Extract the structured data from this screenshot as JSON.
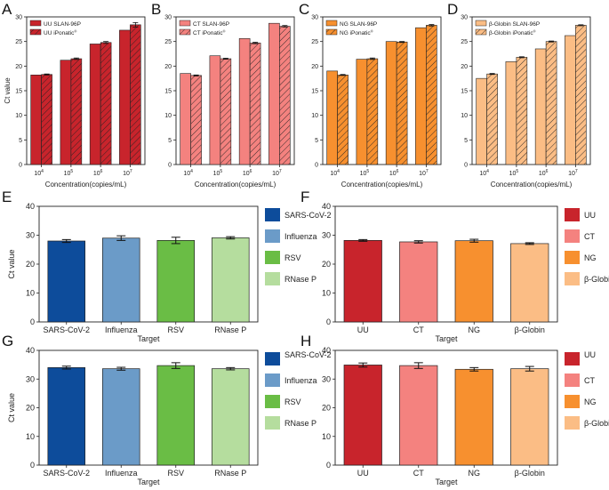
{
  "figure": {
    "hatch_note": "hatched bars = iPonatic"
  },
  "chart_data": [
    {
      "panel": "A",
      "type": "bar",
      "ylabel": "Ct value",
      "xlabel": "Concentration(copies/mL)",
      "ylim": [
        0,
        30
      ],
      "yticks": [
        0,
        5,
        10,
        15,
        20,
        25,
        30
      ],
      "categories": [
        "4",
        "5",
        "6",
        "7"
      ],
      "category_base": "10",
      "series": [
        {
          "name": "UU SLAN-96P",
          "values": [
            18.2,
            21.2,
            24.5,
            27.3
          ],
          "errors": [
            0,
            0,
            0,
            0
          ],
          "color": "#c8242c",
          "hatch": false
        },
        {
          "name": "UU iPonatic",
          "values": [
            18.3,
            21.5,
            24.8,
            28.4
          ],
          "errors": [
            0.1,
            0.15,
            0.2,
            0.45
          ],
          "color": "#c8242c",
          "hatch": true
        }
      ],
      "legend": "top-left"
    },
    {
      "panel": "B",
      "type": "bar",
      "ylabel": "",
      "xlabel": "Concentration(copies/mL)",
      "ylim": [
        0,
        30
      ],
      "yticks": [
        0,
        5,
        10,
        15,
        20,
        25,
        30
      ],
      "categories": [
        "4",
        "5",
        "6",
        "7"
      ],
      "category_base": "10",
      "series": [
        {
          "name": "CT SLAN-96P",
          "values": [
            18.5,
            22.1,
            25.6,
            28.7
          ],
          "errors": [
            0,
            0,
            0,
            0
          ],
          "color": "#f4827f",
          "hatch": false
        },
        {
          "name": "CT iPonatic",
          "values": [
            18.1,
            21.5,
            24.7,
            28.1
          ],
          "errors": [
            0.1,
            0.1,
            0.15,
            0.15
          ],
          "color": "#f4827f",
          "hatch": true
        }
      ],
      "legend": "top-left"
    },
    {
      "panel": "C",
      "type": "bar",
      "ylabel": "",
      "xlabel": "Concentration(copies/mL)",
      "ylim": [
        0,
        30
      ],
      "yticks": [
        0,
        5,
        10,
        15,
        20,
        25,
        30
      ],
      "categories": [
        "4",
        "5",
        "6",
        "7"
      ],
      "category_base": "10",
      "series": [
        {
          "name": "NG SLAN-96P",
          "values": [
            19.0,
            21.4,
            25.0,
            27.8
          ],
          "errors": [
            0,
            0,
            0,
            0
          ],
          "color": "#f7902f",
          "hatch": false
        },
        {
          "name": "NG iPonatic",
          "values": [
            18.2,
            21.5,
            24.9,
            28.3
          ],
          "errors": [
            0.1,
            0.15,
            0.1,
            0.15
          ],
          "color": "#f7902f",
          "hatch": true
        }
      ],
      "legend": "top-left"
    },
    {
      "panel": "D",
      "type": "bar",
      "ylabel": "",
      "xlabel": "Concentration(copies/mL)",
      "ylim": [
        0,
        30
      ],
      "yticks": [
        0,
        5,
        10,
        15,
        20,
        25,
        30
      ],
      "categories": [
        "4",
        "5",
        "6",
        "7"
      ],
      "category_base": "10",
      "series": [
        {
          "name": "β-Globin SLAN-96P",
          "values": [
            17.5,
            20.9,
            23.5,
            26.2
          ],
          "errors": [
            0,
            0,
            0,
            0
          ],
          "color": "#fbbd85",
          "hatch": false
        },
        {
          "name": "β-Globin iPonatic",
          "values": [
            18.4,
            21.8,
            25.0,
            28.3
          ],
          "errors": [
            0.1,
            0.1,
            0.1,
            0.1
          ],
          "color": "#fbbd85",
          "hatch": true
        }
      ],
      "legend": "top-left"
    },
    {
      "panel": "E",
      "type": "bar",
      "ylabel": "Ct value",
      "xlabel": "Target",
      "ylim": [
        0,
        40
      ],
      "yticks": [
        0,
        10,
        20,
        30,
        40
      ],
      "categories": [
        "SARS-CoV-2",
        "Influenza",
        "RSV",
        "RNase P"
      ],
      "values": [
        28.0,
        29.0,
        28.2,
        29.1
      ],
      "errors": [
        0.5,
        0.8,
        1.1,
        0.4
      ],
      "colors": [
        "#0d4c9b",
        "#6b9bc8",
        "#6abd45",
        "#b5dd9e"
      ],
      "legend_entries": [
        "SARS-CoV-2",
        "Influenza",
        "RSV",
        "RNase P"
      ],
      "legend": "outside-right"
    },
    {
      "panel": "F",
      "type": "bar",
      "ylabel": "",
      "xlabel": "Target",
      "ylim": [
        0,
        40
      ],
      "yticks": [
        0,
        10,
        20,
        30,
        40
      ],
      "categories": [
        "UU",
        "CT",
        "NG",
        "β-Globin"
      ],
      "values": [
        28.2,
        27.7,
        28.1,
        27.1
      ],
      "errors": [
        0.3,
        0.4,
        0.5,
        0.3
      ],
      "colors": [
        "#c8242c",
        "#f4827f",
        "#f7902f",
        "#fbbd85"
      ],
      "legend_entries": [
        "UU",
        "CT",
        "NG",
        "β-Globin"
      ],
      "legend": "outside-right"
    },
    {
      "panel": "G",
      "type": "bar",
      "ylabel": "Ct value",
      "xlabel": "Target",
      "ylim": [
        0,
        40
      ],
      "yticks": [
        0,
        10,
        20,
        30,
        40
      ],
      "categories": [
        "SARS-CoV-2",
        "Influenza",
        "RSV",
        "RNase P"
      ],
      "values": [
        34.0,
        33.6,
        34.7,
        33.6
      ],
      "errors": [
        0.5,
        0.5,
        1.0,
        0.4
      ],
      "colors": [
        "#0d4c9b",
        "#6b9bc8",
        "#6abd45",
        "#b5dd9e"
      ],
      "legend_entries": [
        "SARS-CoV-2",
        "Influenza",
        "RSV",
        "RNase P"
      ],
      "legend": "outside-right"
    },
    {
      "panel": "H",
      "type": "bar",
      "ylabel": "",
      "xlabel": "Target",
      "ylim": [
        0,
        40
      ],
      "yticks": [
        0,
        10,
        20,
        30,
        40
      ],
      "categories": [
        "UU",
        "CT",
        "NG",
        "β-Globin"
      ],
      "values": [
        34.9,
        34.7,
        33.4,
        33.6
      ],
      "errors": [
        0.7,
        1.0,
        0.6,
        0.8
      ],
      "colors": [
        "#c8242c",
        "#f4827f",
        "#f7902f",
        "#fbbd85"
      ],
      "legend_entries": [
        "UU",
        "CT",
        "NG",
        "β-Globin"
      ],
      "legend": "outside-right"
    }
  ]
}
